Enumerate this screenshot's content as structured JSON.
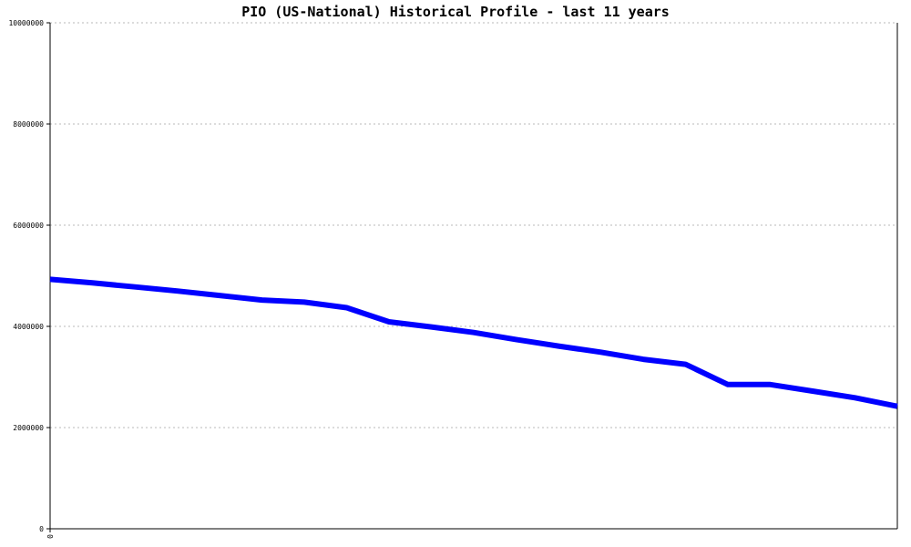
{
  "chart_data": {
    "type": "line",
    "title": "PIO (US-National) Historical Profile - last 11 years",
    "xlabel": "",
    "ylabel": "",
    "x_tick_labels": [
      "0"
    ],
    "y_tick_labels": [
      "0",
      "2000000",
      "4000000",
      "6000000",
      "8000000",
      "10000000"
    ],
    "ylim": [
      0,
      10000000
    ],
    "grid": true,
    "legend": "none",
    "series": [
      {
        "color": "#0000ff",
        "values": [
          4930000,
          4860000,
          4780000,
          4700000,
          4610000,
          4520000,
          4480000,
          4370000,
          4090000,
          3990000,
          3880000,
          3740000,
          3610000,
          3490000,
          3350000,
          3250000,
          2850000,
          2850000,
          2720000,
          2590000,
          2420000
        ]
      }
    ]
  }
}
